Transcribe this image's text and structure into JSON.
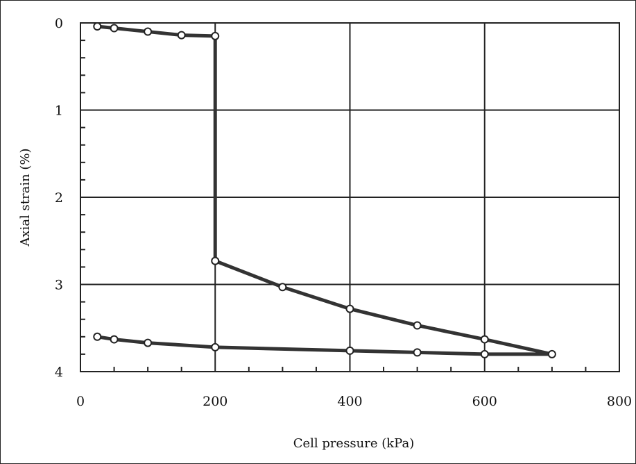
{
  "chart_data": {
    "type": "line",
    "title": "",
    "xlabel": "Cell pressure (kPa)",
    "ylabel": "Axial strain (%)",
    "xlim": [
      0,
      800
    ],
    "ylim": [
      0,
      4
    ],
    "y_inverted": true,
    "x_ticks": [
      "0",
      "200",
      "400",
      "600",
      "800"
    ],
    "y_ticks": [
      "0",
      "1",
      "2",
      "3",
      "4"
    ],
    "grid": true,
    "legend": "none",
    "line_color": "#333333",
    "marker": "open-circle",
    "series": [
      {
        "x": [
          25,
          50,
          100,
          150,
          200,
          200,
          300,
          400,
          500,
          600,
          700,
          600,
          500,
          400,
          200,
          100,
          50,
          25
        ],
        "y": [
          0.04,
          0.06,
          0.1,
          0.14,
          0.15,
          2.73,
          3.03,
          3.28,
          3.47,
          3.63,
          3.8,
          3.8,
          3.78,
          3.76,
          3.72,
          3.67,
          3.63,
          3.6
        ]
      }
    ]
  }
}
